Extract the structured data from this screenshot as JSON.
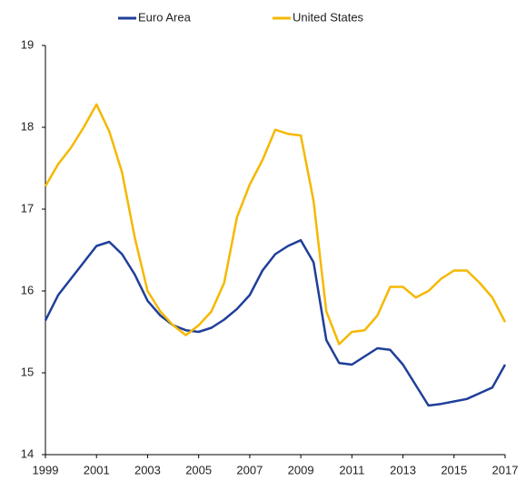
{
  "chart_data": {
    "type": "line",
    "x": [
      1999,
      1999.5,
      2000,
      2000.5,
      2001,
      2001.5,
      2002,
      2002.5,
      2003,
      2003.5,
      2004,
      2004.5,
      2005,
      2005.5,
      2006,
      2006.5,
      2007,
      2007.5,
      2008,
      2008.5,
      2009,
      2009.5,
      2010,
      2010.5,
      2011,
      2011.5,
      2012,
      2012.5,
      2013,
      2013.5,
      2014,
      2014.5,
      2015,
      2015.5,
      2016,
      2016.5,
      2017
    ],
    "series": [
      {
        "name": "Euro Area",
        "color": "#1f3f99",
        "values": [
          15.64,
          15.95,
          16.15,
          16.35,
          16.55,
          16.6,
          16.45,
          16.2,
          15.88,
          15.7,
          15.58,
          15.52,
          15.5,
          15.55,
          15.65,
          15.78,
          15.95,
          16.25,
          16.45,
          16.55,
          16.62,
          16.35,
          15.4,
          15.12,
          15.1,
          15.2,
          15.3,
          15.28,
          15.1,
          14.85,
          14.6,
          14.62,
          14.65,
          14.68,
          14.75,
          14.82,
          15.1
        ]
      },
      {
        "name": "United States",
        "color": "#f5b800",
        "values": [
          17.28,
          17.55,
          17.75,
          18.0,
          18.28,
          17.95,
          17.45,
          16.65,
          16.0,
          15.75,
          15.58,
          15.46,
          15.58,
          15.75,
          16.1,
          16.9,
          17.3,
          17.6,
          17.97,
          17.92,
          17.9,
          17.1,
          15.75,
          15.35,
          15.5,
          15.52,
          15.7,
          16.05,
          16.05,
          15.92,
          16.0,
          16.15,
          16.25,
          16.25,
          16.1,
          15.92,
          15.62
        ]
      }
    ],
    "xlim": [
      1999,
      2017
    ],
    "xticks": [
      1999,
      2001,
      2003,
      2005,
      2007,
      2009,
      2011,
      2013,
      2015,
      2017
    ],
    "ylim": [
      14,
      19
    ],
    "yticks": [
      14,
      15,
      16,
      17,
      18,
      19
    ],
    "legend": "top"
  }
}
